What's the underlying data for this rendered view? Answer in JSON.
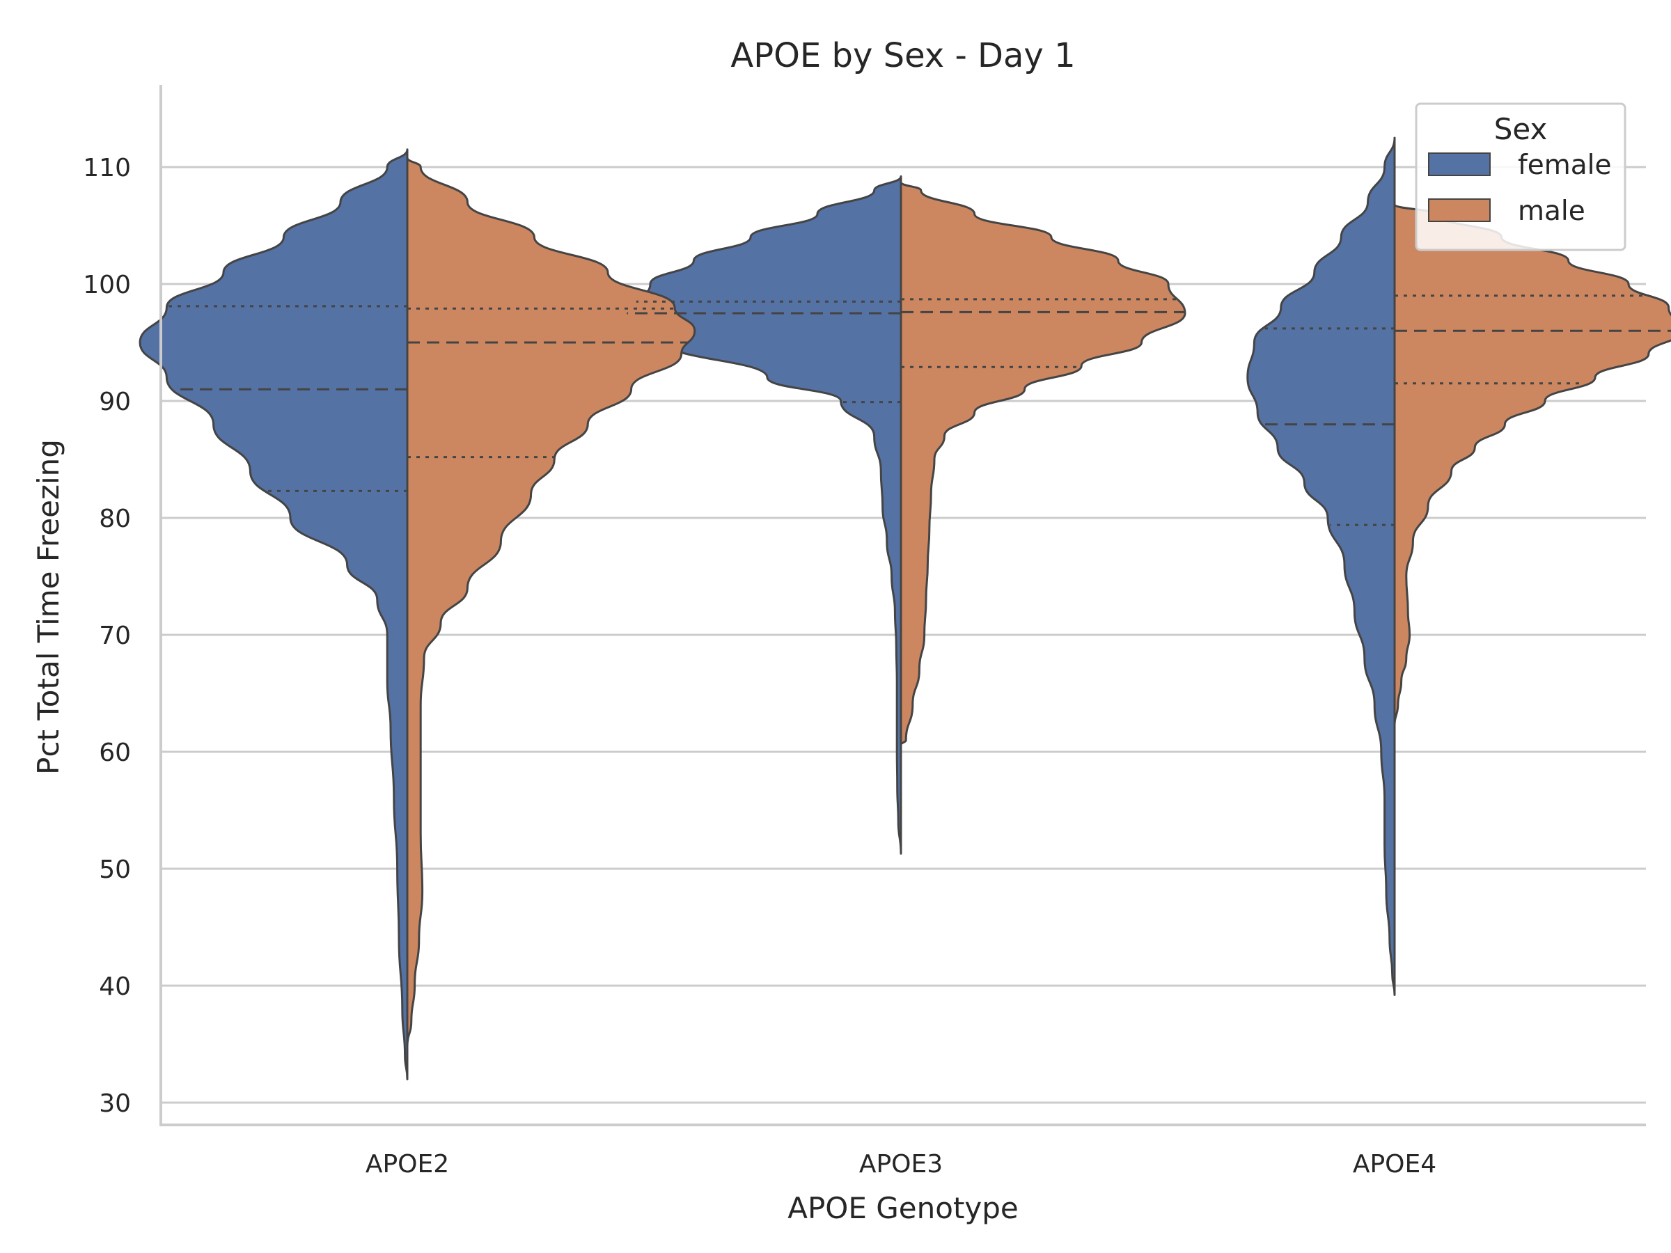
{
  "chart_data": {
    "type": "violin",
    "title": "APOE by Sex - Day 1",
    "xlabel": "APOE Genotype",
    "ylabel": "Pct Total Time Freezing",
    "ylim": [
      28,
      117
    ],
    "yticks": [
      30,
      40,
      50,
      60,
      70,
      80,
      90,
      100,
      110
    ],
    "categories": [
      "APOE2",
      "APOE3",
      "APOE4"
    ],
    "split": true,
    "inner": "quartile",
    "grid": "y",
    "legend": {
      "title": "Sex",
      "placement": "top-right",
      "entries": [
        {
          "label": "female",
          "color": "#5572a5"
        },
        {
          "label": "male",
          "color": "#cc8761"
        }
      ]
    },
    "series": [
      {
        "name": "female",
        "side": "left",
        "color": "#5572a5",
        "violins": [
          {
            "category": "APOE2",
            "min": 32,
            "max": 111.5,
            "q1": 82.3,
            "median": 91,
            "q3": 98.1,
            "profile": [
              [
                111.5,
                0
              ],
              [
                110,
                0.06
              ],
              [
                107,
                0.2
              ],
              [
                104,
                0.37
              ],
              [
                101,
                0.55
              ],
              [
                98,
                0.72
              ],
              [
                95,
                0.8
              ],
              [
                92,
                0.72
              ],
              [
                88,
                0.58
              ],
              [
                84,
                0.47
              ],
              [
                80,
                0.35
              ],
              [
                76,
                0.18
              ],
              [
                73,
                0.09
              ],
              [
                70,
                0.06
              ],
              [
                66,
                0.06
              ],
              [
                62,
                0.05
              ],
              [
                56,
                0.04
              ],
              [
                50,
                0.03
              ],
              [
                44,
                0.025
              ],
              [
                38,
                0.015
              ],
              [
                34,
                0.007
              ],
              [
                32,
                0
              ]
            ]
          },
          {
            "category": "APOE3",
            "min": 51.3,
            "max": 109.2,
            "q1": 89.9,
            "median": 97.5,
            "q3": 98.5,
            "profile": [
              [
                109.2,
                0
              ],
              [
                108,
                0.08
              ],
              [
                106,
                0.25
              ],
              [
                104,
                0.45
              ],
              [
                102,
                0.62
              ],
              [
                100,
                0.75
              ],
              [
                97.5,
                0.82
              ],
              [
                95,
                0.7
              ],
              [
                92,
                0.4
              ],
              [
                90,
                0.18
              ],
              [
                87,
                0.08
              ],
              [
                84,
                0.06
              ],
              [
                81,
                0.055
              ],
              [
                78,
                0.042
              ],
              [
                75,
                0.028
              ],
              [
                72,
                0.018
              ],
              [
                69,
                0.014
              ],
              [
                66,
                0.012
              ],
              [
                63,
                0.012
              ],
              [
                60,
                0.012
              ],
              [
                57,
                0.011
              ],
              [
                54,
                0.008
              ],
              [
                51.3,
                0
              ]
            ]
          },
          {
            "category": "APOE4",
            "min": 39.2,
            "max": 112.5,
            "q1": 79.4,
            "median": 88,
            "q3": 96.2,
            "profile": [
              [
                112.5,
                0
              ],
              [
                110,
                0.03
              ],
              [
                107,
                0.08
              ],
              [
                104,
                0.16
              ],
              [
                101,
                0.24
              ],
              [
                98,
                0.34
              ],
              [
                95,
                0.42
              ],
              [
                92,
                0.44
              ],
              [
                89,
                0.41
              ],
              [
                86,
                0.35
              ],
              [
                83,
                0.27
              ],
              [
                80,
                0.2
              ],
              [
                76,
                0.15
              ],
              [
                72,
                0.12
              ],
              [
                68,
                0.09
              ],
              [
                64,
                0.06
              ],
              [
                60,
                0.04
              ],
              [
                56,
                0.03
              ],
              [
                52,
                0.03
              ],
              [
                48,
                0.025
              ],
              [
                44,
                0.015
              ],
              [
                41,
                0.007
              ],
              [
                39.2,
                0
              ]
            ]
          }
        ]
      },
      {
        "name": "male",
        "side": "right",
        "color": "#cc8761",
        "violins": [
          {
            "category": "APOE2",
            "min": 34.8,
            "max": 110.8,
            "q1": 85.2,
            "median": 95,
            "q3": 97.9,
            "profile": [
              [
                110.8,
                0
              ],
              [
                110,
                0.04
              ],
              [
                107,
                0.18
              ],
              [
                104,
                0.38
              ],
              [
                101,
                0.6
              ],
              [
                98,
                0.8
              ],
              [
                96,
                0.86
              ],
              [
                94,
                0.82
              ],
              [
                91,
                0.67
              ],
              [
                88,
                0.54
              ],
              [
                85,
                0.44
              ],
              [
                82,
                0.37
              ],
              [
                78,
                0.28
              ],
              [
                74,
                0.18
              ],
              [
                71,
                0.1
              ],
              [
                68,
                0.05
              ],
              [
                64,
                0.04
              ],
              [
                58,
                0.04
              ],
              [
                53,
                0.04
              ],
              [
                48,
                0.045
              ],
              [
                44,
                0.035
              ],
              [
                40,
                0.022
              ],
              [
                37,
                0.012
              ],
              [
                34.8,
                0
              ]
            ]
          },
          {
            "category": "APOE3",
            "min": 60.6,
            "max": 108.7,
            "q1": 92.9,
            "median": 97.6,
            "q3": 98.7,
            "profile": [
              [
                108.7,
                0
              ],
              [
                108,
                0.06
              ],
              [
                106,
                0.22
              ],
              [
                104,
                0.45
              ],
              [
                102,
                0.65
              ],
              [
                100,
                0.8
              ],
              [
                97.5,
                0.85
              ],
              [
                95,
                0.72
              ],
              [
                93,
                0.54
              ],
              [
                91,
                0.37
              ],
              [
                89,
                0.22
              ],
              [
                87,
                0.13
              ],
              [
                85,
                0.1
              ],
              [
                82,
                0.09
              ],
              [
                79,
                0.085
              ],
              [
                76,
                0.08
              ],
              [
                73,
                0.075
              ],
              [
                70,
                0.07
              ],
              [
                67,
                0.055
              ],
              [
                64,
                0.035
              ],
              [
                61,
                0.015
              ],
              [
                60.6,
                0
              ]
            ]
          },
          {
            "category": "APOE4",
            "min": 62.3,
            "max": 106.8,
            "q1": 91.5,
            "median": 96,
            "q3": 99,
            "profile": [
              [
                106.8,
                0
              ],
              [
                106,
                0.12
              ],
              [
                104,
                0.32
              ],
              [
                102,
                0.52
              ],
              [
                100,
                0.7
              ],
              [
                98,
                0.82
              ],
              [
                96,
                0.86
              ],
              [
                94,
                0.76
              ],
              [
                92,
                0.6
              ],
              [
                90,
                0.45
              ],
              [
                88,
                0.33
              ],
              [
                86,
                0.24
              ],
              [
                84,
                0.17
              ],
              [
                81,
                0.1
              ],
              [
                78,
                0.055
              ],
              [
                75,
                0.035
              ],
              [
                72,
                0.04
              ],
              [
                70,
                0.045
              ],
              [
                68,
                0.035
              ],
              [
                66,
                0.02
              ],
              [
                64,
                0.01
              ],
              [
                62.3,
                0
              ]
            ]
          }
        ]
      }
    ]
  }
}
